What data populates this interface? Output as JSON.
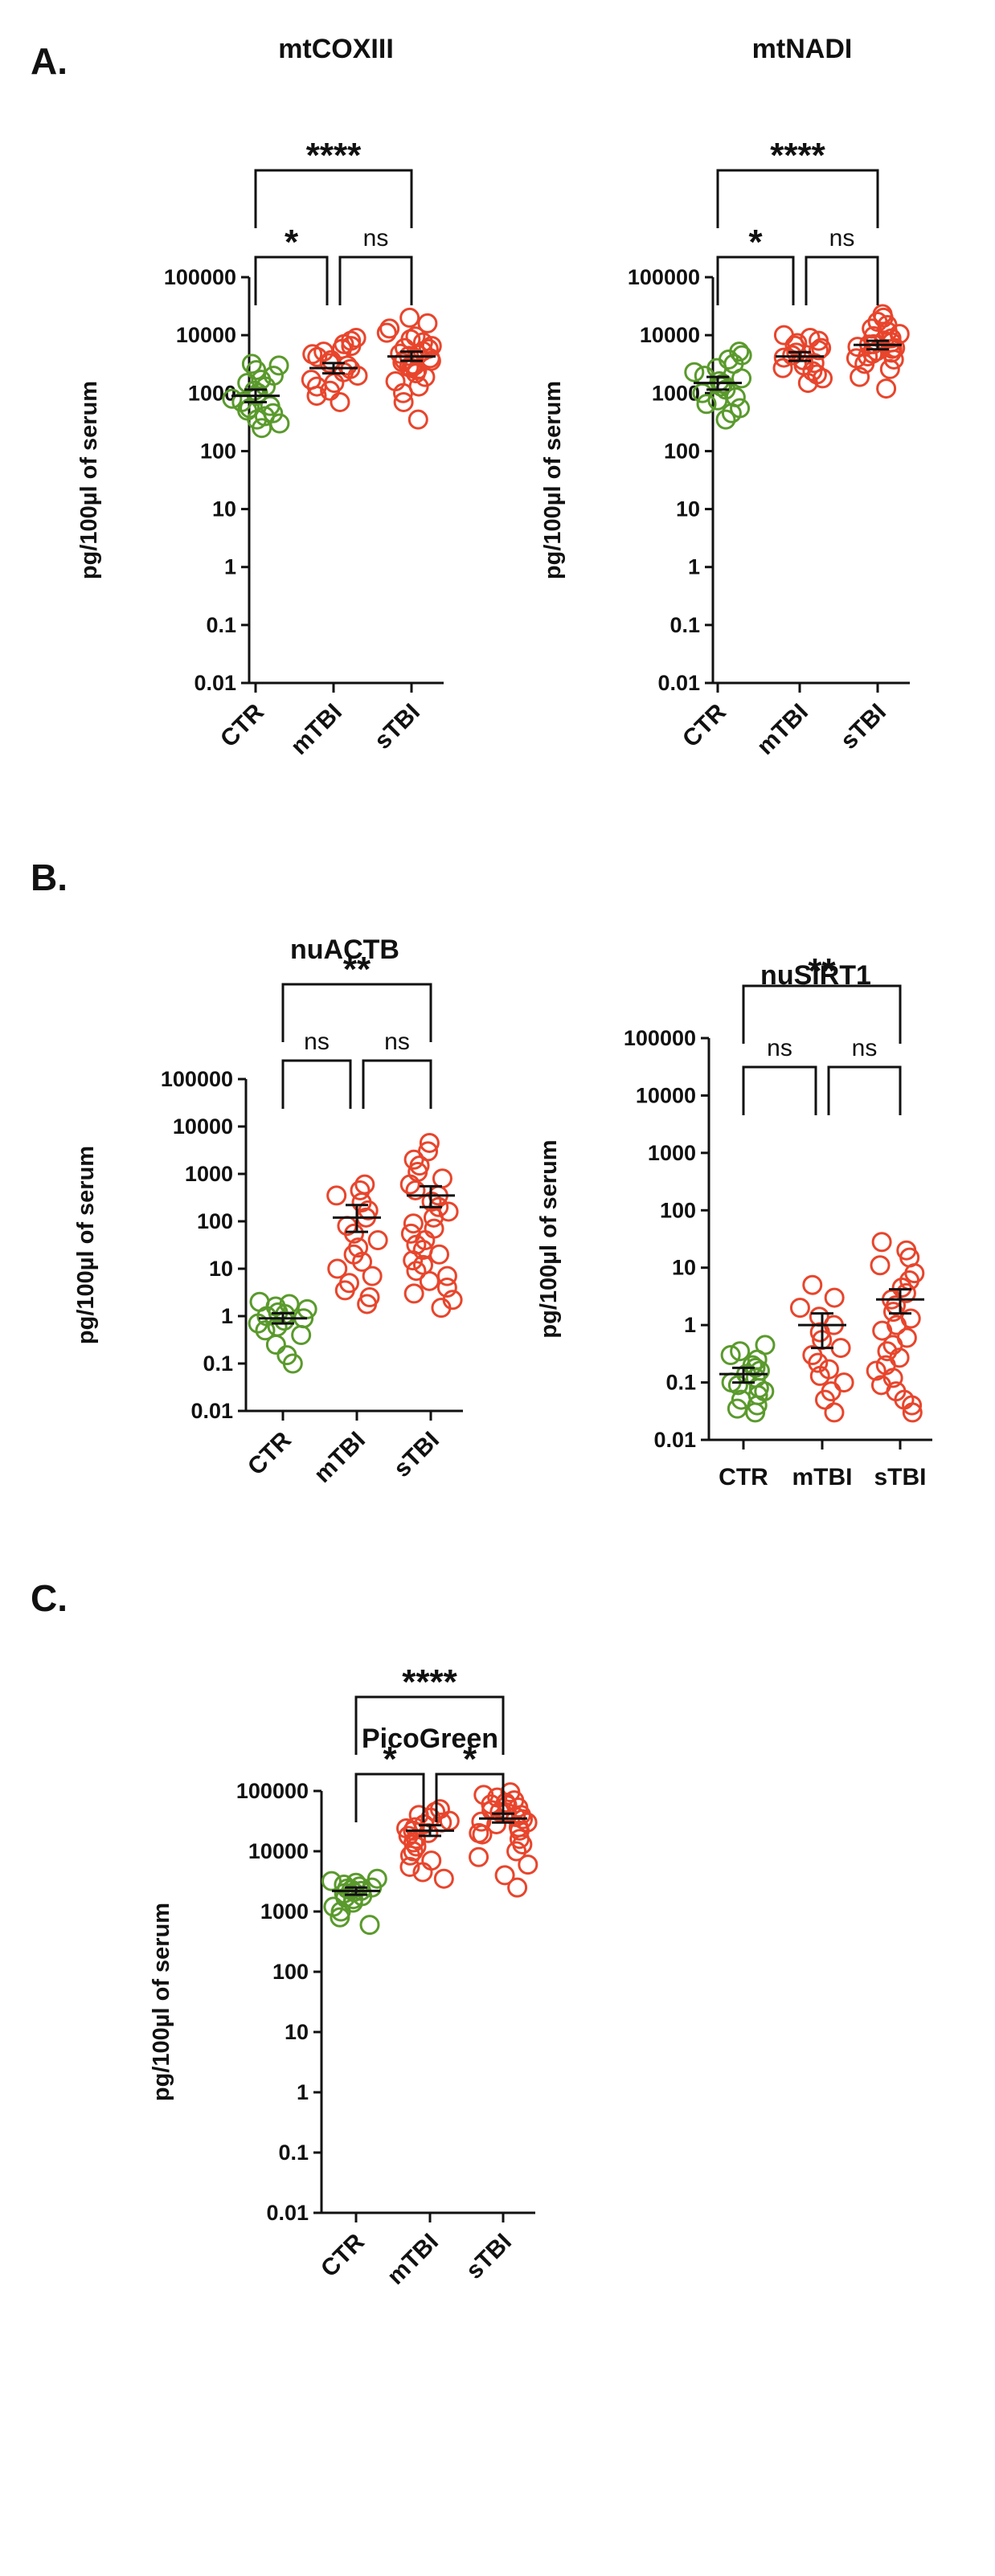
{
  "colors": {
    "CTR": "#5a9a2c",
    "mTBI": "#e8452c",
    "sTBI": "#e8452c",
    "text": "#111111"
  },
  "panels": [
    {
      "letter": "A."
    },
    {
      "letter": "B."
    },
    {
      "letter": "C."
    }
  ],
  "chart_data": [
    {
      "type": "scatter",
      "panel": "A.",
      "title": "mtCOXIII",
      "ylabel": "pg/100µl of serum",
      "yscale": "log",
      "ylim": [
        0.01,
        100000
      ],
      "yticks": [
        0.01,
        0.1,
        1,
        10,
        100,
        1000,
        10000,
        100000
      ],
      "ytick_labels": [
        "0.01",
        "0.1",
        "1",
        "10",
        "100",
        "1000",
        "10000",
        "100000"
      ],
      "categories": [
        "CTR",
        "mTBI",
        "sTBI"
      ],
      "category_label_rotation": -45,
      "groups": [
        {
          "name": "CTR",
          "mean": 900,
          "sem_low": 700,
          "sem_high": 1150,
          "values": [
            250,
            300,
            350,
            400,
            450,
            500,
            550,
            600,
            700,
            800,
            900,
            1000,
            1100,
            1300,
            1500,
            1700,
            2000,
            2500,
            3000,
            3200
          ]
        },
        {
          "name": "mTBI",
          "mean": 2700,
          "sem_low": 2200,
          "sem_high": 3300,
          "values": [
            700,
            900,
            1100,
            1300,
            1500,
            1700,
            2000,
            2300,
            2600,
            3000,
            3300,
            3700,
            4200,
            4700,
            5200,
            5800,
            6500,
            7000,
            8000,
            9000
          ]
        },
        {
          "name": "sTBI",
          "mean": 4300,
          "sem_low": 3600,
          "sem_high": 5200,
          "values": [
            350,
            700,
            1000,
            1300,
            1600,
            1900,
            2200,
            2500,
            2800,
            3100,
            3400,
            3700,
            4000,
            4400,
            4800,
            5300,
            5800,
            6500,
            7500,
            8500,
            9500,
            11000,
            13000,
            16000,
            20000,
            3000,
            3600,
            4600,
            6000,
            2700
          ]
        }
      ],
      "comparisons": [
        {
          "from": "CTR",
          "to": "mTBI",
          "label": "*",
          "level": 1
        },
        {
          "from": "mTBI",
          "to": "sTBI",
          "label": "ns",
          "level": 1
        },
        {
          "from": "CTR",
          "to": "sTBI",
          "label": "****",
          "level": 2
        }
      ]
    },
    {
      "type": "scatter",
      "panel": "A.",
      "title": "mtNADI",
      "ylabel": "pg/100µl of serum",
      "yscale": "log",
      "ylim": [
        0.01,
        100000
      ],
      "yticks": [
        0.01,
        0.1,
        1,
        10,
        100,
        1000,
        10000,
        100000
      ],
      "ytick_labels": [
        "0.01",
        "0.1",
        "1",
        "10",
        "100",
        "1000",
        "10000",
        "100000"
      ],
      "categories": [
        "CTR",
        "mTBI",
        "sTBI"
      ],
      "category_label_rotation": -45,
      "groups": [
        {
          "name": "CTR",
          "mean": 1500,
          "sem_low": 1150,
          "sem_high": 1900,
          "values": [
            350,
            450,
            550,
            650,
            750,
            850,
            1000,
            1150,
            1300,
            1450,
            1600,
            1800,
            2000,
            2300,
            2700,
            3200,
            3800,
            4500,
            5200
          ]
        },
        {
          "name": "mTBI",
          "mean": 4300,
          "sem_low": 3600,
          "sem_high": 5100,
          "values": [
            1500,
            1800,
            2100,
            2400,
            2700,
            3000,
            3300,
            3700,
            4100,
            4500,
            5000,
            5500,
            6000,
            6600,
            7300,
            8000,
            9000,
            10000
          ]
        },
        {
          "name": "sTBI",
          "mean": 6800,
          "sem_low": 5700,
          "sem_high": 8000,
          "values": [
            1200,
            1900,
            2600,
            3200,
            3800,
            4300,
            4800,
            5300,
            5800,
            6300,
            6900,
            7500,
            8100,
            8800,
            9600,
            10500,
            11500,
            13000,
            15000,
            17000,
            20000,
            23000,
            4000,
            5000,
            6000,
            7000
          ]
        }
      ],
      "comparisons": [
        {
          "from": "CTR",
          "to": "mTBI",
          "label": "*",
          "level": 1
        },
        {
          "from": "mTBI",
          "to": "sTBI",
          "label": "ns",
          "level": 1
        },
        {
          "from": "CTR",
          "to": "sTBI",
          "label": "****",
          "level": 2
        }
      ]
    },
    {
      "type": "scatter",
      "panel": "B.",
      "title": "nuACTB",
      "ylabel": "pg/100µl of serum",
      "yscale": "log",
      "ylim": [
        0.01,
        100000
      ],
      "yticks": [
        0.01,
        0.1,
        1,
        10,
        100,
        1000,
        10000,
        100000
      ],
      "ytick_labels": [
        "0.01",
        "0.1",
        "1",
        "10",
        "100",
        "1000",
        "10000",
        "100000"
      ],
      "categories": [
        "CTR",
        "mTBI",
        "sTBI"
      ],
      "category_label_rotation": -45,
      "groups": [
        {
          "name": "CTR",
          "mean": 0.9,
          "sem_low": 0.7,
          "sem_high": 1.15,
          "values": [
            0.1,
            0.15,
            0.25,
            0.4,
            0.5,
            0.6,
            0.7,
            0.8,
            0.9,
            1.0,
            1.1,
            1.2,
            1.4,
            1.6,
            1.8,
            2.0
          ]
        },
        {
          "name": "mTBI",
          "mean": 120,
          "sem_low": 60,
          "sem_high": 220,
          "values": [
            1.8,
            2.5,
            3.5,
            5,
            7,
            10,
            14,
            20,
            28,
            40,
            55,
            80,
            120,
            170,
            250,
            350,
            450,
            600
          ]
        },
        {
          "name": "sTBI",
          "mean": 350,
          "sem_low": 200,
          "sem_high": 550,
          "values": [
            1.5,
            2.2,
            3,
            4,
            5.5,
            7,
            9,
            12,
            15,
            20,
            25,
            32,
            40,
            55,
            70,
            90,
            120,
            160,
            200,
            260,
            350,
            450,
            600,
            800,
            1100,
            1500,
            2000,
            3000,
            4500
          ]
        }
      ],
      "comparisons": [
        {
          "from": "CTR",
          "to": "mTBI",
          "label": "ns",
          "level": 1
        },
        {
          "from": "mTBI",
          "to": "sTBI",
          "label": "ns",
          "level": 1
        },
        {
          "from": "CTR",
          "to": "sTBI",
          "label": "**",
          "level": 2
        }
      ]
    },
    {
      "type": "scatter",
      "panel": "B.",
      "title": "nuSIRT1",
      "ylabel": "pg/100µl of serum",
      "yscale": "log",
      "ylim": [
        0.01,
        100000
      ],
      "yticks": [
        0.01,
        0.1,
        1,
        10,
        100,
        1000,
        10000,
        100000
      ],
      "ytick_labels": [
        "0.01",
        "0.1",
        "1",
        "10",
        "100",
        "1000",
        "10000",
        "100000"
      ],
      "categories": [
        "CTR",
        "mTBI",
        "sTBI"
      ],
      "category_label_rotation": 0,
      "groups": [
        {
          "name": "CTR",
          "mean": 0.14,
          "sem_low": 0.1,
          "sem_high": 0.18,
          "values": [
            0.03,
            0.035,
            0.04,
            0.05,
            0.06,
            0.07,
            0.08,
            0.09,
            0.1,
            0.12,
            0.14,
            0.16,
            0.18,
            0.2,
            0.25,
            0.3,
            0.35,
            0.45
          ]
        },
        {
          "name": "mTBI",
          "mean": 1.0,
          "sem_low": 0.4,
          "sem_high": 1.6,
          "values": [
            0.03,
            0.05,
            0.07,
            0.1,
            0.13,
            0.17,
            0.22,
            0.3,
            0.4,
            0.55,
            0.75,
            1.0,
            1.4,
            2.0,
            3.0,
            5.0
          ]
        },
        {
          "name": "sTBI",
          "mean": 2.8,
          "sem_low": 1.6,
          "sem_high": 4.2,
          "values": [
            0.03,
            0.04,
            0.05,
            0.07,
            0.09,
            0.12,
            0.16,
            0.2,
            0.27,
            0.35,
            0.45,
            0.6,
            0.8,
            1.0,
            1.3,
            1.7,
            2.2,
            2.8,
            3.6,
            4.5,
            6,
            8,
            11,
            15,
            20,
            28
          ]
        }
      ],
      "comparisons": [
        {
          "from": "CTR",
          "to": "mTBI",
          "label": "ns",
          "level": 1
        },
        {
          "from": "mTBI",
          "to": "sTBI",
          "label": "ns",
          "level": 1
        },
        {
          "from": "CTR",
          "to": "sTBI",
          "label": "**",
          "level": 2
        }
      ]
    },
    {
      "type": "scatter",
      "panel": "C.",
      "title": "PicoGreen",
      "ylabel": "pg/100µl of serum",
      "yscale": "log",
      "ylim": [
        0.01,
        100000
      ],
      "yticks": [
        0.01,
        0.1,
        1,
        10,
        100,
        1000,
        10000,
        100000
      ],
      "ytick_labels": [
        "0.01",
        "0.1",
        "1",
        "10",
        "100",
        "1000",
        "10000",
        "100000"
      ],
      "categories": [
        "CTR",
        "mTBI",
        "sTBI"
      ],
      "category_label_rotation": -45,
      "groups": [
        {
          "name": "CTR",
          "mean": 2200,
          "sem_low": 1900,
          "sem_high": 2500,
          "values": [
            600,
            800,
            1000,
            1200,
            1400,
            1600,
            1800,
            2000,
            2200,
            2400,
            2600,
            2800,
            3000,
            3200,
            3500,
            2100,
            1700,
            2300,
            2500
          ]
        },
        {
          "name": "mTBI",
          "mean": 22000,
          "sem_low": 18000,
          "sem_high": 27000,
          "values": [
            3500,
            4500,
            5500,
            7000,
            8500,
            10000,
            12000,
            14000,
            16000,
            18000,
            20000,
            22000,
            25000,
            28000,
            32000,
            36000,
            40000,
            45000,
            50000,
            24000,
            30000
          ]
        },
        {
          "name": "sTBI",
          "mean": 35000,
          "sem_low": 30000,
          "sem_high": 42000,
          "values": [
            2500,
            4000,
            6000,
            8000,
            10000,
            13000,
            16000,
            19000,
            22000,
            25000,
            28000,
            31000,
            34000,
            37000,
            40000,
            44000,
            48000,
            53000,
            58000,
            64000,
            70000,
            78000,
            86000,
            95000,
            20000,
            30000,
            45000,
            60000
          ]
        }
      ],
      "comparisons": [
        {
          "from": "CTR",
          "to": "mTBI",
          "label": "*",
          "level": 1
        },
        {
          "from": "mTBI",
          "to": "sTBI",
          "label": "*",
          "level": 1
        },
        {
          "from": "CTR",
          "to": "sTBI",
          "label": "****",
          "level": 2
        }
      ]
    }
  ]
}
